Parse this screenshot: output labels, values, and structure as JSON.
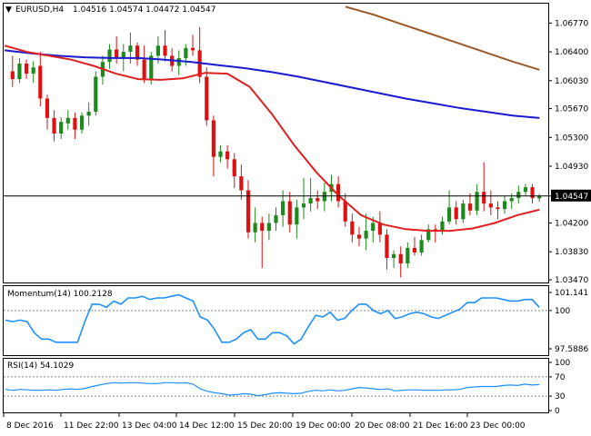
{
  "header": {
    "symbol": "EURUSD,H4",
    "ohlc": "1.04516 1.04574 1.04472 1.04547",
    "caret": "▼"
  },
  "colors": {
    "bull": "#1e8a1e",
    "bear": "#dd1111",
    "ma_fast": "#e02020",
    "ma_mid": "#1a1ad0",
    "ma_slow": "#9b5a2c",
    "indicator": "#1e90ff"
  },
  "chart_data": [
    {
      "type": "candlestick",
      "title": "EURUSD,H4 1.04516 1.04574 1.04472 1.04547",
      "ylim": [
        1.0347,
        1.0695
      ],
      "y_ticks": [
        "1.06770",
        "1.06400",
        "1.06030",
        "1.05670",
        "1.05300",
        "1.04930",
        "1.04547",
        "1.04200",
        "1.03830",
        "1.03470"
      ],
      "current_price": 1.04547,
      "x_ticks": [
        "8 Dec 2016",
        "11 Dec 22:00",
        "13 Dec 04:00",
        "14 Dec 12:00",
        "15 Dec 20:00",
        "19 Dec 00:00",
        "20 Dec 08:00",
        "21 Dec 16:00",
        "23 Dec 00:00"
      ],
      "candles": [
        [
          1.0615,
          1.0635,
          1.0595,
          1.0605
        ],
        [
          1.0605,
          1.0632,
          1.06,
          1.0625
        ],
        [
          1.0625,
          1.063,
          1.0605,
          1.0612
        ],
        [
          1.0612,
          1.0628,
          1.06,
          1.062
        ],
        [
          1.0622,
          1.064,
          1.057,
          1.058
        ],
        [
          1.058,
          1.0585,
          1.054,
          1.0555
        ],
        [
          1.0555,
          1.0565,
          1.0525,
          1.0535
        ],
        [
          1.0535,
          1.0556,
          1.0528,
          1.055
        ],
        [
          1.0548,
          1.0565,
          1.054,
          1.0555
        ],
        [
          1.0555,
          1.0562,
          1.0528,
          1.054
        ],
        [
          1.054,
          1.0562,
          1.0535,
          1.0558
        ],
        [
          1.0558,
          1.0575,
          1.0545,
          1.0563
        ],
        [
          1.0563,
          1.0615,
          1.0558,
          1.0608
        ],
        [
          1.0608,
          1.0635,
          1.0598,
          1.0627
        ],
        [
          1.0627,
          1.065,
          1.0618,
          1.0643
        ],
        [
          1.0643,
          1.066,
          1.0625,
          1.0632
        ],
        [
          1.0632,
          1.065,
          1.0615,
          1.064
        ],
        [
          1.064,
          1.0665,
          1.0625,
          1.0648
        ],
        [
          1.0648,
          1.0652,
          1.0622,
          1.063
        ],
        [
          1.063,
          1.0648,
          1.06,
          1.0605
        ],
        [
          1.0605,
          1.064,
          1.0598,
          1.0635
        ],
        [
          1.0635,
          1.066,
          1.0625,
          1.0648
        ],
        [
          1.0648,
          1.0668,
          1.0628,
          1.0635
        ],
        [
          1.0635,
          1.0645,
          1.0615,
          1.0622
        ],
        [
          1.0622,
          1.0642,
          1.061,
          1.0632
        ],
        [
          1.0632,
          1.065,
          1.0622,
          1.0645
        ],
        [
          1.0645,
          1.0662,
          1.0635,
          1.0642
        ],
        [
          1.0642,
          1.0672,
          1.06,
          1.0608
        ],
        [
          1.0608,
          1.062,
          1.0545,
          1.0552
        ],
        [
          1.0552,
          1.0558,
          1.048,
          1.0505
        ],
        [
          1.0505,
          1.052,
          1.0498,
          1.0512
        ],
        [
          1.0512,
          1.052,
          1.049,
          1.0502
        ],
        [
          1.0502,
          1.051,
          1.0465,
          1.048
        ],
        [
          1.048,
          1.0495,
          1.045,
          1.0462
        ],
        [
          1.0462,
          1.0475,
          1.04,
          1.0408
        ],
        [
          1.0408,
          1.044,
          1.0395,
          1.042
        ],
        [
          1.042,
          1.0428,
          1.0362,
          1.041
        ],
        [
          1.041,
          1.0432,
          1.0398,
          1.042
        ],
        [
          1.042,
          1.044,
          1.041,
          1.043
        ],
        [
          1.043,
          1.0462,
          1.0415,
          1.0448
        ],
        [
          1.0448,
          1.046,
          1.0408,
          1.0418
        ],
        [
          1.0418,
          1.045,
          1.04,
          1.044
        ],
        [
          1.044,
          1.0478,
          1.0425,
          1.0445
        ],
        [
          1.0445,
          1.0478,
          1.0435,
          1.0452
        ],
        [
          1.0452,
          1.0462,
          1.0438,
          1.0448
        ],
        [
          1.0448,
          1.0472,
          1.0435,
          1.046
        ],
        [
          1.046,
          1.0482,
          1.0448,
          1.047
        ],
        [
          1.047,
          1.048,
          1.044,
          1.0448
        ],
        [
          1.0448,
          1.0458,
          1.0415,
          1.0422
        ],
        [
          1.0422,
          1.0432,
          1.0395,
          1.0405
        ],
        [
          1.0405,
          1.0415,
          1.039,
          1.04
        ],
        [
          1.04,
          1.0432,
          1.0385,
          1.041
        ],
        [
          1.041,
          1.0428,
          1.0395,
          1.042
        ],
        [
          1.042,
          1.0435,
          1.0395,
          1.0405
        ],
        [
          1.0405,
          1.0412,
          1.036,
          1.0375
        ],
        [
          1.0375,
          1.0385,
          1.0362,
          1.038
        ],
        [
          1.038,
          1.039,
          1.035,
          1.0368
        ],
        [
          1.0368,
          1.0395,
          1.0362,
          1.0388
        ],
        [
          1.0388,
          1.0402,
          1.0378,
          1.0382
        ],
        [
          1.0382,
          1.0405,
          1.0378,
          1.0398
        ],
        [
          1.0398,
          1.0418,
          1.0395,
          1.0412
        ],
        [
          1.0412,
          1.0418,
          1.0395,
          1.041
        ],
        [
          1.041,
          1.0428,
          1.0405,
          1.0422
        ],
        [
          1.0422,
          1.0462,
          1.0418,
          1.044
        ],
        [
          1.044,
          1.0448,
          1.0418,
          1.0425
        ],
        [
          1.0425,
          1.045,
          1.042,
          1.0445
        ],
        [
          1.0445,
          1.0458,
          1.043,
          1.0436
        ],
        [
          1.0436,
          1.047,
          1.043,
          1.046
        ],
        [
          1.046,
          1.0498,
          1.0435,
          1.0445
        ],
        [
          1.0445,
          1.0462,
          1.043,
          1.044
        ],
        [
          1.044,
          1.0448,
          1.0425,
          1.0438
        ],
        [
          1.0438,
          1.0455,
          1.0432,
          1.0448
        ],
        [
          1.0448,
          1.0458,
          1.0438,
          1.0452
        ],
        [
          1.0452,
          1.0468,
          1.0445,
          1.046
        ],
        [
          1.046,
          1.047,
          1.0455,
          1.0466
        ],
        [
          1.0466,
          1.047,
          1.0445,
          1.0452
        ],
        [
          1.04516,
          1.04574,
          1.04472,
          1.04547
        ]
      ],
      "ma_fast": [
        1.0648,
        1.064,
        1.0635,
        1.063,
        1.0622,
        1.0612,
        1.0605,
        1.0604,
        1.0606,
        1.0613,
        1.0612,
        1.0595,
        1.056,
        1.052,
        1.0485,
        1.0455,
        1.043,
        1.0418,
        1.0412,
        1.041,
        1.041,
        1.0413,
        1.042,
        1.043,
        1.0437
      ],
      "ma_mid": [
        1.0642,
        1.0638,
        1.0635,
        1.0633,
        1.0632,
        1.0632,
        1.063,
        1.0627,
        1.0623,
        1.0619,
        1.0614,
        1.0608,
        1.0601,
        1.0594,
        1.0587,
        1.058,
        1.0574,
        1.0568,
        1.0563,
        1.0558,
        1.0555
      ],
      "ma_slow": [
        1.0698,
        1.0688,
        1.0676,
        1.0664,
        1.0652,
        1.064,
        1.0628,
        1.0617
      ]
    },
    {
      "type": "line",
      "title": "Momentum(14) 100.2128",
      "series_name": "Momentum(14)",
      "current_value": 100.2128,
      "ylim": [
        97.5886,
        101.141
      ],
      "y_ticks": [
        "101.141",
        "100",
        "97.5886"
      ],
      "reference_level": 100,
      "values": [
        99.4,
        99.3,
        99.4,
        99.3,
        98.6,
        98.2,
        98.2,
        98.0,
        98.0,
        98.0,
        98.0,
        99.3,
        100.4,
        100.4,
        100.2,
        100.6,
        100.4,
        100.8,
        100.8,
        100.9,
        100.7,
        100.8,
        100.8,
        100.9,
        101.0,
        100.8,
        100.6,
        99.6,
        99.4,
        98.8,
        98.0,
        98.0,
        98.2,
        98.6,
        98.8,
        98.2,
        98.2,
        98.6,
        98.6,
        98.4,
        97.9,
        98.2,
        99.0,
        99.7,
        99.6,
        99.9,
        99.4,
        99.5,
        100.0,
        100.4,
        100.4,
        100.0,
        99.8,
        100.0,
        99.5,
        99.6,
        99.8,
        99.9,
        99.8,
        99.6,
        99.5,
        99.7,
        99.9,
        100.1,
        100.5,
        100.5,
        100.8,
        100.8,
        100.8,
        100.7,
        100.6,
        100.6,
        100.7,
        100.7,
        100.2
      ]
    },
    {
      "type": "line",
      "title": "RSI(14) 54.1029",
      "series_name": "RSI(14)",
      "current_value": 54.1029,
      "ylim": [
        0,
        100
      ],
      "y_ticks": [
        "100",
        "70",
        "30",
        "0"
      ],
      "levels": [
        70,
        30
      ],
      "values": [
        44,
        42,
        44,
        43,
        42,
        42,
        43,
        42,
        44,
        45,
        44,
        46,
        50,
        53,
        56,
        58,
        57,
        58,
        58,
        57,
        56,
        56,
        58,
        58,
        57,
        58,
        55,
        45,
        40,
        37,
        35,
        32,
        33,
        35,
        34,
        31,
        33,
        36,
        37,
        36,
        35,
        36,
        40,
        42,
        41,
        43,
        41,
        42,
        45,
        48,
        47,
        45,
        44,
        45,
        41,
        42,
        43,
        43,
        42,
        42,
        42,
        43,
        43,
        44,
        48,
        49,
        50,
        50,
        50,
        52,
        53,
        52,
        55,
        53,
        54
      ]
    }
  ]
}
